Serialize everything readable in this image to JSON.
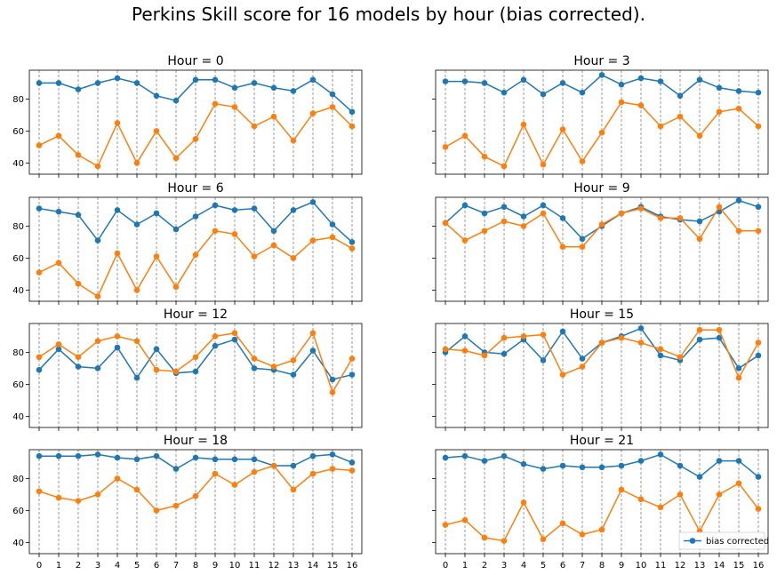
{
  "figure": {
    "title": "Perkins Skill score for 16 models by hour (bias corrected)."
  },
  "colors": {
    "blue": "#1f77b4",
    "orange": "#ff7f0e"
  },
  "chart_data": {
    "type": "line",
    "x": [
      0,
      1,
      2,
      3,
      4,
      5,
      6,
      7,
      8,
      9,
      10,
      11,
      12,
      13,
      14,
      15,
      16
    ],
    "x_tick_labels": [
      "0",
      "1",
      "2",
      "3",
      "4",
      "5",
      "6",
      "7",
      "8",
      "9",
      "10",
      "11",
      "12",
      "13",
      "14",
      "15",
      "16"
    ],
    "y_ticks": [
      40,
      60,
      80
    ],
    "y_tick_labels": [
      "40",
      "60",
      "80"
    ],
    "ylim": [
      33,
      98
    ],
    "grid": "vertical dashed at each x",
    "legend": {
      "placement": "lower-right",
      "panel": 7,
      "entries": [
        "bias corrected"
      ]
    },
    "panels": [
      {
        "title": "Hour = 0",
        "blue": [
          90,
          90,
          86,
          90,
          93,
          90,
          82,
          79,
          92,
          92,
          87,
          90,
          87,
          85,
          92,
          83,
          72
        ],
        "orange": [
          51,
          57,
          45,
          38,
          65,
          40,
          60,
          43,
          55,
          77,
          75,
          63,
          69,
          54,
          71,
          75,
          63
        ]
      },
      {
        "title": "Hour = 3",
        "blue": [
          91,
          91,
          90,
          84,
          92,
          83,
          90,
          84,
          95,
          89,
          93,
          91,
          82,
          92,
          87,
          85,
          84
        ],
        "orange": [
          50,
          57,
          44,
          38,
          64,
          39,
          61,
          41,
          59,
          78,
          76,
          63,
          69,
          57,
          72,
          74,
          63
        ]
      },
      {
        "title": "Hour = 6",
        "blue": [
          91,
          89,
          87,
          71,
          90,
          81,
          88,
          78,
          86,
          93,
          90,
          91,
          77,
          90,
          95,
          81,
          70
        ],
        "orange": [
          51,
          57,
          44,
          36,
          63,
          40,
          61,
          42,
          62,
          77,
          75,
          61,
          68,
          60,
          71,
          73,
          66
        ]
      },
      {
        "title": "Hour = 9",
        "blue": [
          82,
          93,
          88,
          92,
          86,
          93,
          85,
          72,
          80,
          88,
          92,
          86,
          84,
          83,
          89,
          96,
          92
        ],
        "orange": [
          82,
          71,
          77,
          83,
          80,
          88,
          67,
          67,
          81,
          88,
          91,
          85,
          85,
          72,
          92,
          77,
          77
        ]
      },
      {
        "title": "Hour = 12",
        "blue": [
          69,
          82,
          71,
          70,
          83,
          64,
          82,
          67,
          68,
          84,
          88,
          70,
          69,
          66,
          81,
          63,
          66
        ],
        "orange": [
          77,
          85,
          77,
          87,
          90,
          87,
          69,
          68,
          77,
          90,
          92,
          76,
          71,
          75,
          92,
          55,
          76
        ]
      },
      {
        "title": "Hour = 15",
        "blue": [
          80,
          90,
          80,
          79,
          88,
          75,
          93,
          76,
          86,
          90,
          95,
          78,
          75,
          88,
          89,
          70,
          78
        ],
        "orange": [
          82,
          81,
          78,
          89,
          90,
          91,
          66,
          71,
          86,
          89,
          86,
          82,
          77,
          94,
          94,
          64,
          86
        ]
      },
      {
        "title": "Hour = 18",
        "blue": [
          94,
          94,
          94,
          95,
          93,
          92,
          94,
          86,
          93,
          92,
          92,
          92,
          88,
          88,
          94,
          95,
          90
        ],
        "orange": [
          72,
          68,
          66,
          70,
          80,
          73,
          60,
          63,
          69,
          83,
          76,
          84,
          88,
          73,
          83,
          86,
          85
        ]
      },
      {
        "title": "Hour = 21",
        "blue": [
          93,
          94,
          91,
          94,
          89,
          86,
          88,
          87,
          87,
          88,
          91,
          95,
          88,
          81,
          91,
          91,
          81
        ],
        "orange": [
          51,
          54,
          43,
          41,
          65,
          42,
          52,
          45,
          48,
          73,
          67,
          62,
          70,
          47,
          70,
          77,
          61
        ]
      }
    ]
  }
}
